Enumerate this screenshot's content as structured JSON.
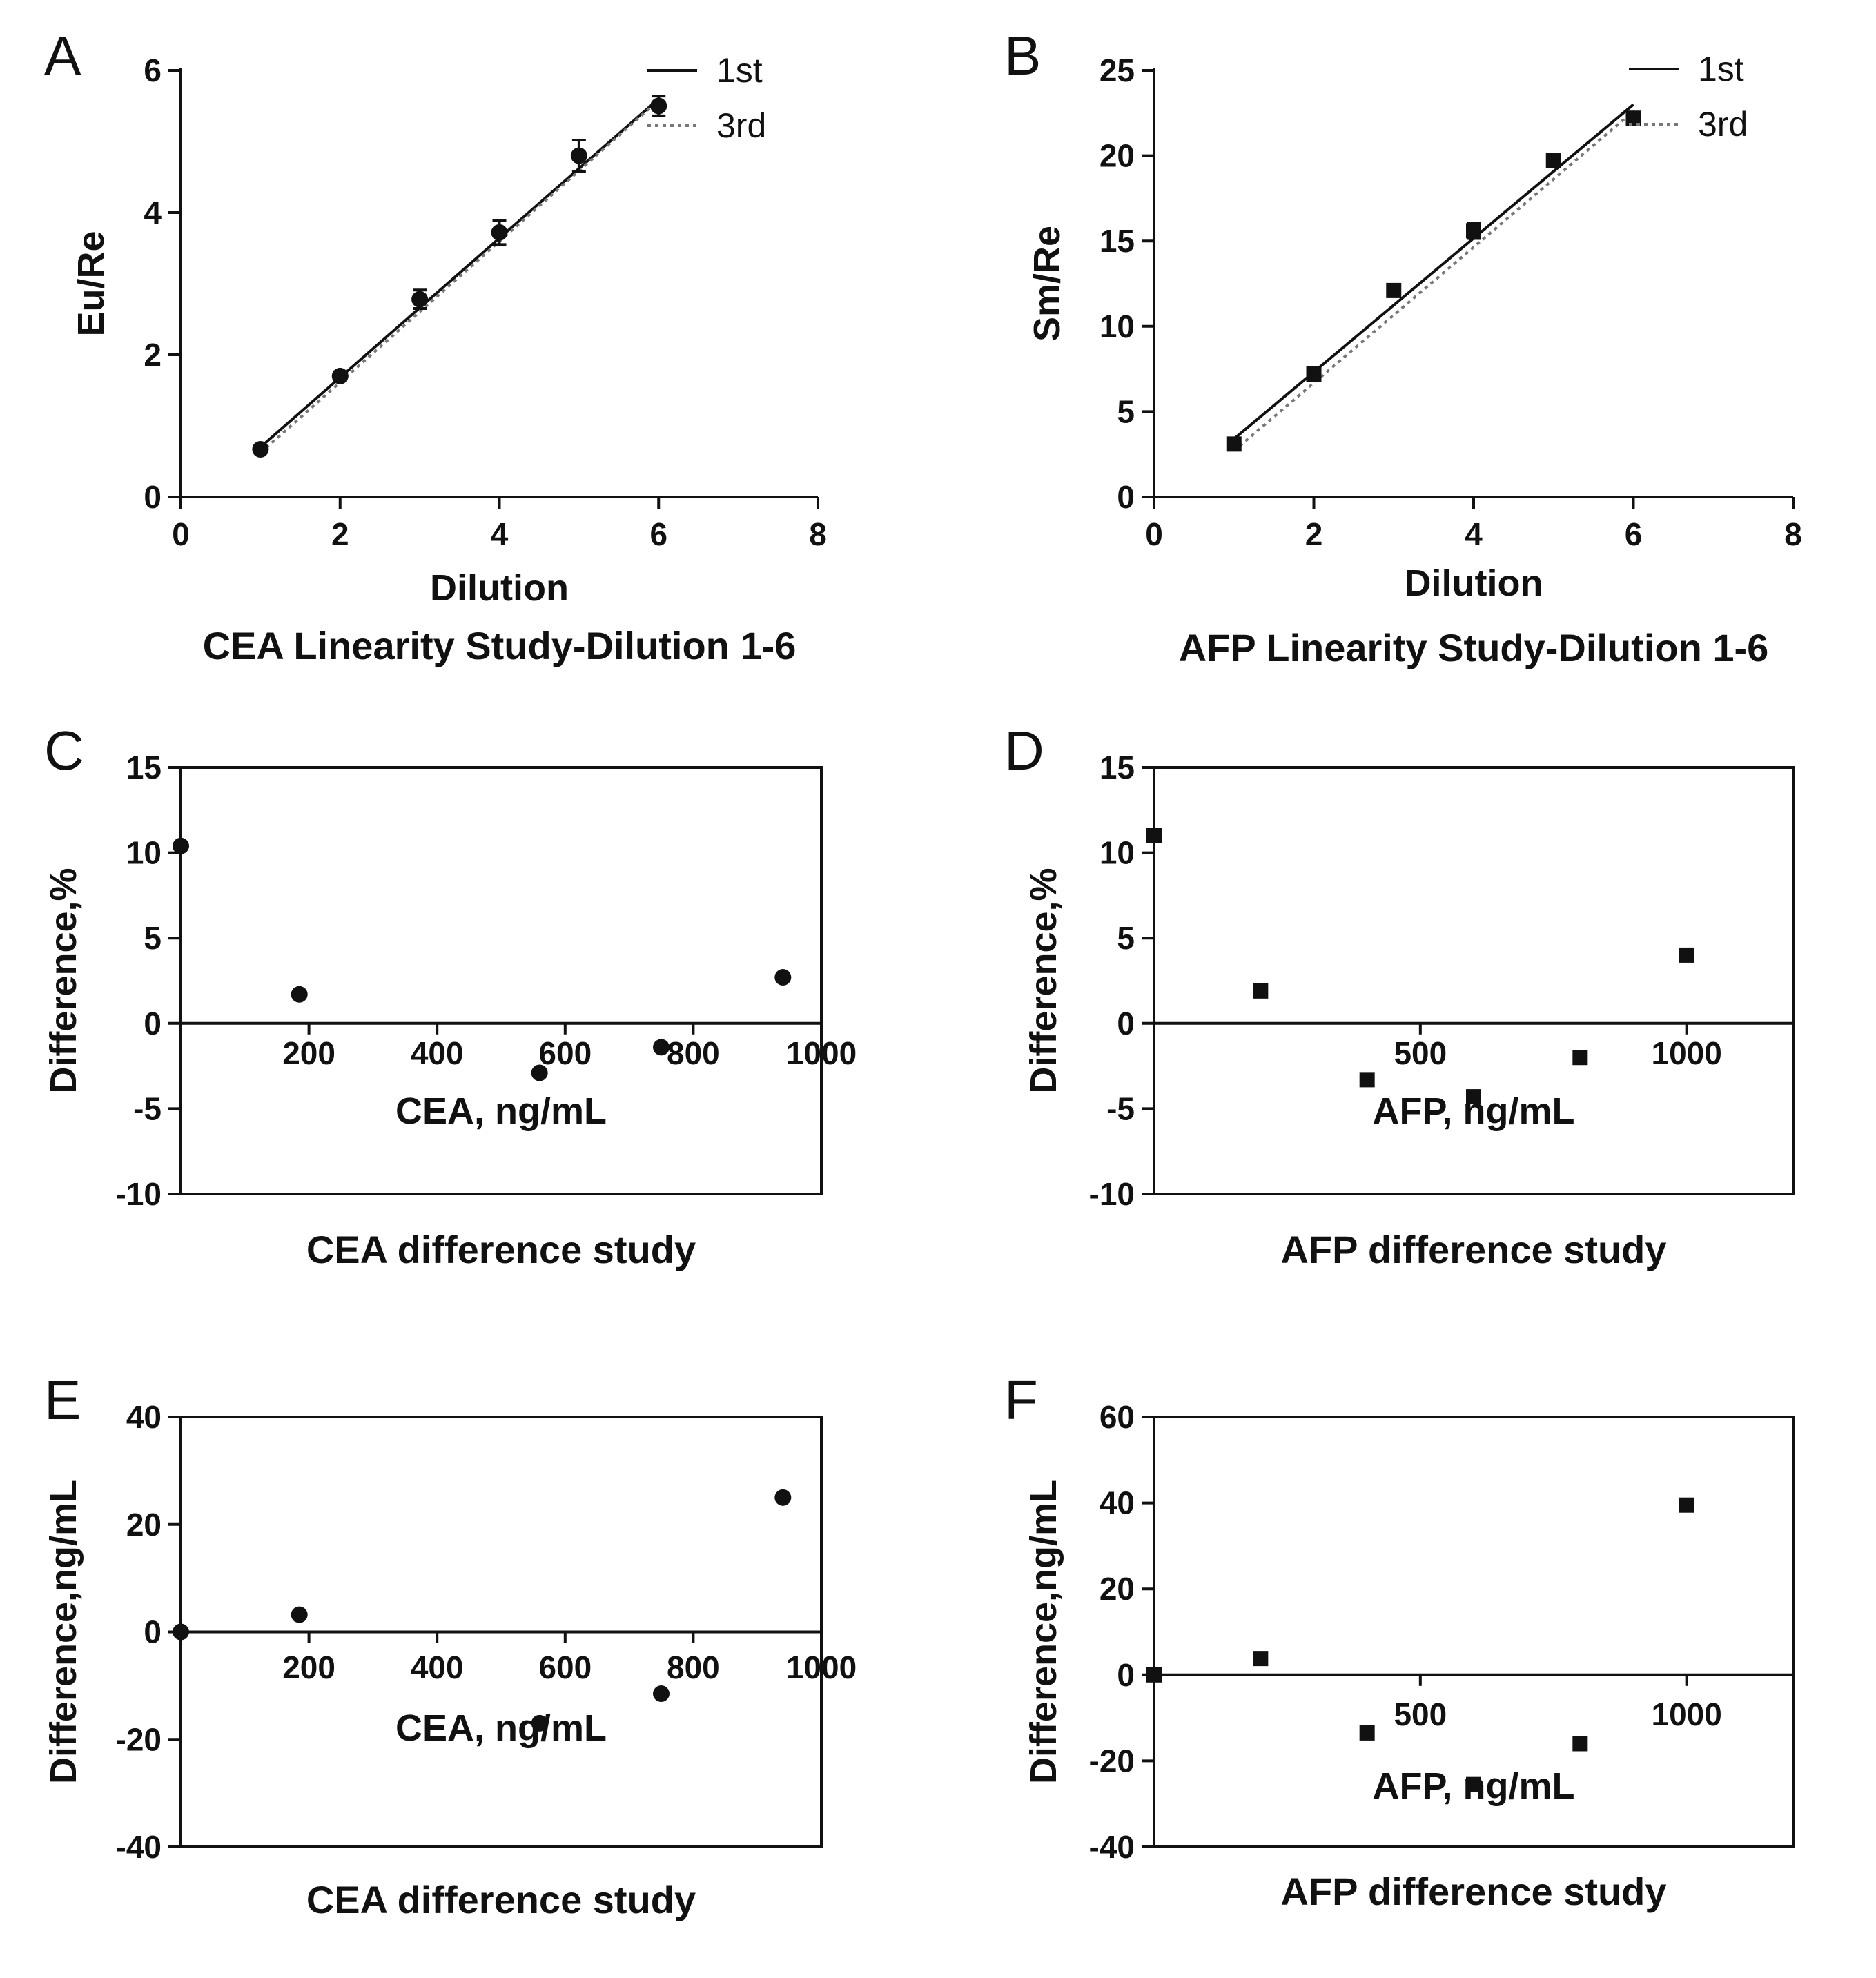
{
  "chart_data": [
    {
      "panel": "A",
      "type": "scatter",
      "ylabel": "Eu/Re",
      "xlabel": "Dilution",
      "caption": "CEA Linearity Study-Dilution 1-6",
      "xlim": [
        0,
        8
      ],
      "ylim": [
        0,
        6
      ],
      "xticks": [
        "0",
        "2",
        "4",
        "6",
        "8"
      ],
      "yticks": [
        "0",
        "2",
        "4",
        "6"
      ],
      "marker": "circle",
      "points": {
        "x": [
          1,
          2,
          3,
          4,
          5,
          6
        ],
        "y": [
          0.67,
          1.7,
          2.78,
          3.72,
          4.8,
          5.5
        ],
        "error": [
          0.05,
          0.06,
          0.13,
          0.17,
          0.22,
          0.14
        ]
      },
      "legend": {
        "position": "top-right",
        "entries": [
          "1st",
          "3rd"
        ]
      },
      "lines": [
        {
          "name": "1st",
          "style": "solid",
          "x": [
            1,
            6
          ],
          "y": [
            0.7,
            5.6
          ]
        },
        {
          "name": "3rd",
          "style": "dotted",
          "x": [
            1,
            6
          ],
          "y": [
            0.62,
            5.58
          ]
        }
      ]
    },
    {
      "panel": "B",
      "type": "scatter",
      "ylabel": "Sm/Re",
      "xlabel": "Dilution",
      "caption": "AFP Linearity Study-Dilution 1-6",
      "xlim": [
        0,
        8
      ],
      "ylim": [
        0,
        25
      ],
      "xticks": [
        "0",
        "2",
        "4",
        "6",
        "8"
      ],
      "yticks": [
        "0",
        "5",
        "10",
        "15",
        "20",
        "25"
      ],
      "marker": "square",
      "points": {
        "x": [
          1,
          2,
          3,
          4,
          5,
          6
        ],
        "y": [
          3.1,
          7.2,
          12.1,
          15.6,
          19.7,
          22.2
        ],
        "error": [
          0.2,
          0.2,
          0.3,
          0.45,
          0.3,
          0.25
        ]
      },
      "legend": {
        "position": "top-right",
        "entries": [
          "1st",
          "3rd"
        ]
      },
      "lines": [
        {
          "name": "1st",
          "style": "solid",
          "x": [
            1,
            6
          ],
          "y": [
            3.4,
            23.0
          ]
        },
        {
          "name": "3rd",
          "style": "dotted",
          "x": [
            1,
            6
          ],
          "y": [
            2.7,
            22.6
          ]
        }
      ]
    },
    {
      "panel": "C",
      "type": "scatter",
      "ylabel": "Difference,%",
      "xlabel": "CEA, ng/mL",
      "caption": "CEA difference study",
      "xlim": [
        0,
        1000
      ],
      "ylim": [
        -10,
        15
      ],
      "xticks": [
        "200",
        "400",
        "600",
        "800",
        "1000"
      ],
      "yticks": [
        "-10",
        "-5",
        "0",
        "5",
        "10",
        "15"
      ],
      "marker": "circle",
      "zero_line": true,
      "points": {
        "x": [
          0,
          185,
          560,
          750,
          940
        ],
        "y": [
          10.4,
          1.7,
          -2.9,
          -1.4,
          2.7
        ]
      }
    },
    {
      "panel": "D",
      "type": "scatter",
      "ylabel": "Difference,%",
      "xlabel": "AFP, ng/mL",
      "caption": "AFP difference study",
      "xlim": [
        0,
        1200
      ],
      "ylim": [
        -10,
        15
      ],
      "xticks": [
        "500",
        "1000"
      ],
      "yticks": [
        "-10",
        "-5",
        "0",
        "5",
        "10",
        "15"
      ],
      "marker": "square",
      "zero_line": true,
      "points": {
        "x": [
          0,
          200,
          400,
          600,
          800,
          1000
        ],
        "y": [
          11.0,
          1.9,
          -3.3,
          -4.3,
          -2.0,
          4.0
        ]
      }
    },
    {
      "panel": "E",
      "type": "scatter",
      "ylabel": "Difference,ng/mL",
      "xlabel": "CEA, ng/mL",
      "caption": "CEA difference study",
      "xlim": [
        0,
        1000
      ],
      "ylim": [
        -40,
        40
      ],
      "xticks": [
        "200",
        "400",
        "600",
        "800",
        "1000"
      ],
      "yticks": [
        "-40",
        "-20",
        "0",
        "20",
        "40"
      ],
      "marker": "circle",
      "zero_line": true,
      "points": {
        "x": [
          0,
          185,
          560,
          750,
          940
        ],
        "y": [
          0,
          3.2,
          -17.0,
          -11.5,
          25.0
        ]
      }
    },
    {
      "panel": "F",
      "type": "scatter",
      "ylabel": "Difference,ng/mL",
      "xlabel": "AFP, ng/mL",
      "caption": "AFP difference study",
      "xlim": [
        0,
        1200
      ],
      "ylim": [
        -40,
        60
      ],
      "xticks": [
        "500",
        "1000"
      ],
      "yticks": [
        "-40",
        "-20",
        "0",
        "20",
        "40",
        "60"
      ],
      "marker": "square",
      "zero_line": true,
      "points": {
        "x": [
          0,
          200,
          400,
          600,
          800,
          1000
        ],
        "y": [
          0,
          3.8,
          -13.5,
          -25.5,
          -16.0,
          39.5
        ]
      }
    }
  ]
}
